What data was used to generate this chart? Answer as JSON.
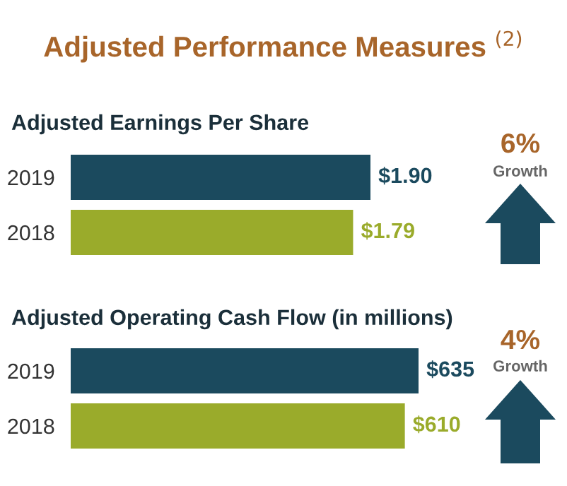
{
  "chart_data": [
    {
      "type": "bar",
      "orientation": "horizontal",
      "title": "Adjusted Performance Measures $^{(2)}$",
      "subtitle": "Adjusted Earnings Per Share",
      "categories": [
        "2019",
        "2018"
      ],
      "values": [
        1.9,
        1.79
      ],
      "colors": [
        "#1b4a5e",
        "#9aab2b"
      ],
      "value_labels": [
        "$1.90",
        "$1.79"
      ],
      "annotations": [
        "6%",
        "Growth"
      ]
    },
    {
      "type": "bar",
      "orientation": "horizontal",
      "title": "Adjusted Operating Cash Flow (in millions)",
      "categories": [
        "2019",
        "2018"
      ],
      "values": [
        635,
        610
      ],
      "colors": [
        "#1b4a5e",
        "#9aab2b"
      ],
      "value_labels": [
        "$635",
        "$610"
      ],
      "annotations": [
        "4%",
        "Growth"
      ]
    }
  ]
}
